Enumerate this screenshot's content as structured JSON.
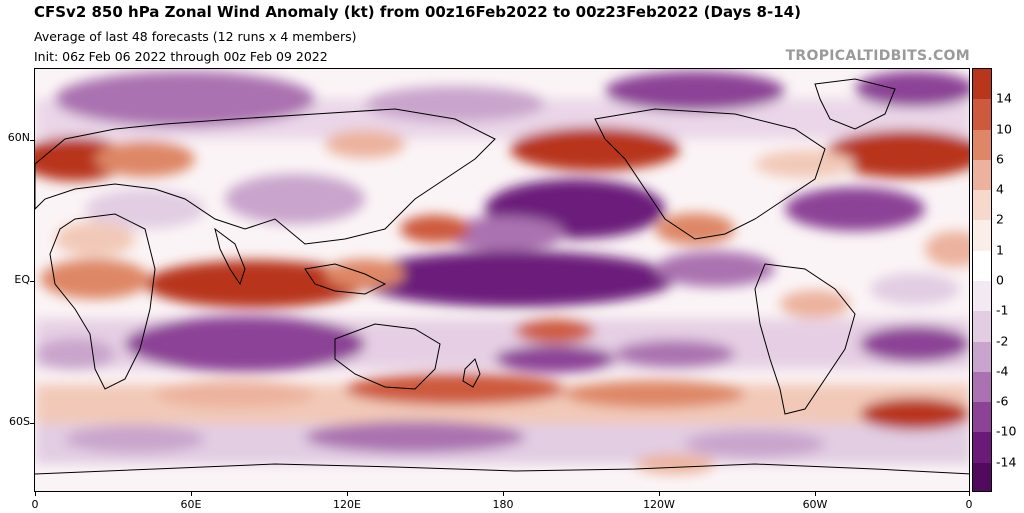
{
  "header": {
    "title": "CFSv2 850 hPa Zonal Wind Anomaly (kt) from 00z16Feb2022 to 00z23Feb2022 (Days 8-14)",
    "subtitle1": "Average of last 48 forecasts (12 runs x 4 members)",
    "subtitle2": "Init: 06z Feb 06 2022 through 00z Feb 09 2022",
    "brand": "TROPICALTIDBITS.COM"
  },
  "axes": {
    "lat_labels": [
      "60N",
      "EQ",
      "60S"
    ],
    "lon_labels": [
      "0",
      "60E",
      "120E",
      "180",
      "120W",
      "60W",
      "0"
    ]
  },
  "colorbar": {
    "labels": [
      "14",
      "10",
      "6",
      "4",
      "2",
      "1",
      "0",
      "-1",
      "-2",
      "-4",
      "-6",
      "-10",
      "-14"
    ],
    "colors": [
      "#b8361c",
      "#cd5a3c",
      "#de8766",
      "#ecb29d",
      "#f6d8cc",
      "#fbeee8",
      "#ffffff",
      "#f3e9f3",
      "#e2cde3",
      "#c9a4cc",
      "#aa72b0",
      "#8c4396",
      "#6c1a7a",
      "#520a5e"
    ]
  },
  "map": {
    "type": "filled-contour",
    "variable": "850 hPa zonal wind anomaly (kt)",
    "colors": {
      "land": "#c9b79a",
      "strong_pos": "#b8361c",
      "mod_pos": "#de8766",
      "weak_pos": "#f2c9b8",
      "strong_neg": "#6c1a7a",
      "mod_neg": "#aa72b0",
      "weak_neg": "#e2cde3"
    }
  }
}
